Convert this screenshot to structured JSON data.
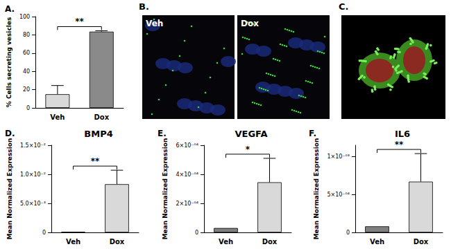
{
  "chart_data": [
    {
      "type": "bar",
      "panel": "A.",
      "categories": [
        "Veh",
        "Dox"
      ],
      "values": [
        15,
        83.5
      ],
      "errors": [
        9.5,
        1
      ],
      "colors": [
        "#d9d9d9",
        "#8a8a8a"
      ],
      "ylabel": "% Cells secreting vesicles",
      "ylim": [
        0,
        100
      ],
      "yticks": [
        0,
        20,
        40,
        60,
        80,
        100
      ],
      "annotations": [
        {
          "text": "**",
          "between": [
            "Veh",
            "Dox"
          ]
        }
      ]
    },
    {
      "type": "bar",
      "panel": "D.",
      "title": "BMP4",
      "categories": [
        "Veh",
        "Dox"
      ],
      "values": [
        0.0001,
        0.0083
      ],
      "errors": [
        0,
        0.0024
      ],
      "colors": [
        "#7f7f7f",
        "#d9d9d9"
      ],
      "ylabel": "Mean Normalized Expression",
      "ylim": [
        0,
        0.015
      ],
      "yticks": [
        0,
        {
          "value": 0.005,
          "label": "5.0×10⁻³"
        },
        {
          "value": 0.01,
          "label": "1.0×10⁻²"
        },
        {
          "value": 0.015,
          "label": "1.5×10⁻²"
        }
      ],
      "annotations": [
        {
          "text": "**",
          "between": [
            "Veh",
            "Dox"
          ]
        }
      ]
    },
    {
      "type": "bar",
      "panel": "E.",
      "title": "VEGFA",
      "categories": [
        "Veh",
        "Dox"
      ],
      "values": [
        3e-05,
        0.000345
      ],
      "errors": [
        0,
        0.000165
      ],
      "colors": [
        "#7f7f7f",
        "#d9d9d9"
      ],
      "ylabel": "Mean Normalized Expression",
      "ylim": [
        0,
        0.0006
      ],
      "yticks": [
        0,
        {
          "value": 0.0002,
          "label": "2×10⁻⁰⁴"
        },
        {
          "value": 0.0004,
          "label": "4×10⁻⁰⁴"
        },
        {
          "value": 0.0006,
          "label": "6×10⁻⁰⁴"
        }
      ],
      "annotations": [
        {
          "text": "*",
          "between": [
            "Veh",
            "Dox"
          ]
        }
      ]
    },
    {
      "type": "bar",
      "panel": "F.",
      "title": "IL6",
      "categories": [
        "Veh",
        "Dox"
      ],
      "values": [
        8e-05,
        0.00067
      ],
      "errors": [
        0,
        0.00037
      ],
      "colors": [
        "#7f7f7f",
        "#d9d9d9"
      ],
      "ylabel": "Mean Normalized Expression",
      "ylim": [
        0,
        0.00115
      ],
      "yticks": [
        0,
        {
          "value": 0.0005,
          "label": "5×10⁻⁰⁴"
        },
        {
          "value": 0.001,
          "label": "1×10⁻⁰³"
        }
      ],
      "annotations": [
        {
          "text": "**",
          "between": [
            "Veh",
            "Dox"
          ]
        }
      ]
    }
  ],
  "images": [
    {
      "panel": "B.",
      "labels": [
        "Veh",
        "Dox"
      ]
    },
    {
      "panel": "C."
    }
  ]
}
